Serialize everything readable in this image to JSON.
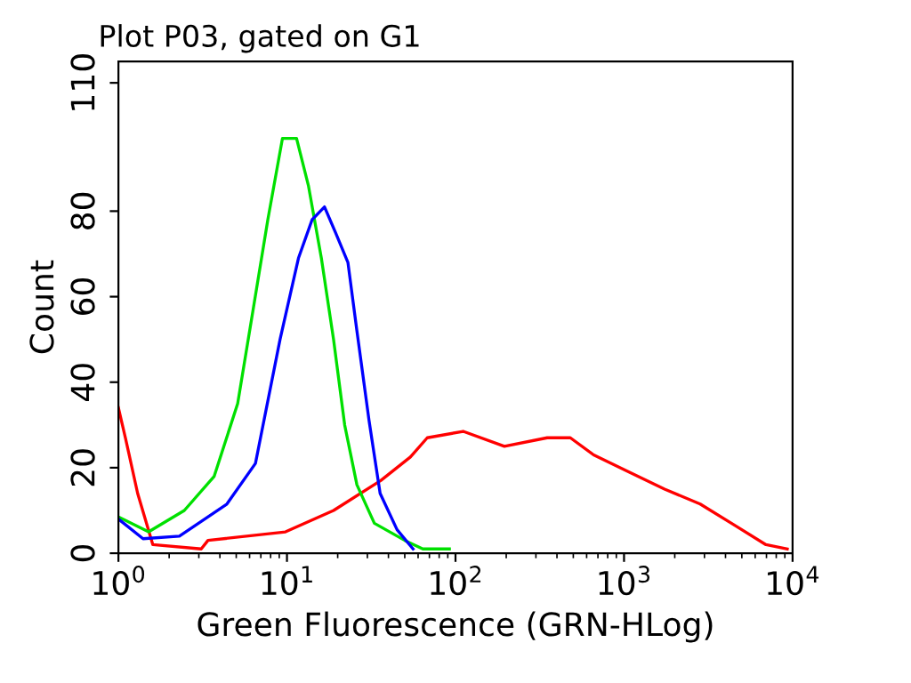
{
  "chart_data": {
    "type": "line",
    "title": "Plot P03, gated on G1",
    "xlabel": "Green Fluorescence (GRN-HLog)",
    "ylabel": "Count",
    "log": "x",
    "xlim": [
      1,
      10000
    ],
    "xticks": [
      {
        "value": 1,
        "label": "10$^{0}$"
      },
      {
        "value": 10,
        "label": "10$^{1}$"
      },
      {
        "value": 100,
        "label": "10$^{2}$"
      },
      {
        "value": 1000,
        "label": "10$^{3}$"
      },
      {
        "value": 10000,
        "label": "10$^{4}$"
      }
    ],
    "ylim": [
      0,
      115
    ],
    "yticks": [
      0,
      20,
      40,
      60,
      80,
      110
    ],
    "grid": false,
    "legend": false,
    "marker": "none",
    "line_style": "solid",
    "series": [
      {
        "color": "#ff0000",
        "x": [
          1,
          1.1,
          1.3,
          1.6,
          3.1,
          3.4,
          9.8,
          18.9,
          36,
          54,
          68,
          111,
          195,
          350,
          480,
          660,
          1070,
          1740,
          2830,
          4600,
          6950,
          9300
        ],
        "values": [
          34,
          27,
          14,
          2,
          1,
          3,
          5,
          10,
          17,
          22.5,
          27,
          28.5,
          25,
          27,
          27,
          23,
          19,
          15,
          11.5,
          6.4,
          2,
          1
        ]
      },
      {
        "color": "#00e000",
        "x": [
          1,
          1.51,
          2.46,
          3.7,
          5.1,
          6.3,
          7.7,
          9.4,
          11.4,
          13.4,
          16,
          18.9,
          22,
          26,
          33,
          50,
          64,
          92
        ],
        "values": [
          8.5,
          5,
          10,
          18,
          35,
          57,
          78,
          97,
          97,
          86,
          69,
          50,
          30,
          16,
          7,
          3,
          1,
          1
        ]
      },
      {
        "color": "#0000ff",
        "x": [
          1,
          1.4,
          2.3,
          4.4,
          6.5,
          9.1,
          11.7,
          14.1,
          16.7,
          19.4,
          23,
          26,
          30.7,
          35.7,
          45,
          56
        ],
        "values": [
          8,
          3.4,
          4,
          11.5,
          21,
          50,
          69,
          78,
          81,
          75,
          68,
          52,
          31,
          14,
          5.5,
          1
        ]
      }
    ]
  }
}
